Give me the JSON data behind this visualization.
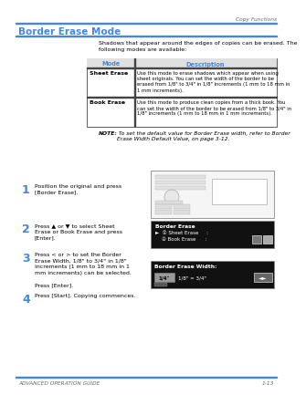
{
  "title": "Border Erase Mode",
  "header_label": "Copy Functions",
  "footer_left": "ADVANCED OPERATION GUIDE",
  "footer_right": "1-13",
  "section_color": "#4488DD",
  "intro_text": "Shadows that appear around the edges of copies can be erased. The\nfollowing modes are available:",
  "table_headers": [
    "Mode",
    "Description"
  ],
  "table_rows": [
    [
      "Sheet Erase",
      "Use this mode to erase shadows which appear when using\nsheet originals. You can set the width of the border to be\nerased from 1/8\" to 3/4\" in 1/8\" increments (1 mm to 18 mm in\n1 mm increments)."
    ],
    [
      "Book Erase",
      "Use this mode to produce clean copies from a thick book. You\ncan set the width of the border to be erased from 1/8\" to 3/4\" in\n1/8\" increments (1 mm to 18 mm in 1 mm increments)."
    ]
  ],
  "note_bold": "NOTE:",
  "note_text": " To set the default value for Border Erase width, refer to Border\nErase Width Default Value, on page 3-12.",
  "steps": [
    {
      "num": "1",
      "text": "Position the original and press\n[Border Erase]."
    },
    {
      "num": "2",
      "text": "Press ▲ or ▼ to select Sheet\nErase or Book Erase and press\n[Enter]."
    },
    {
      "num": "3",
      "text": "Press < or > to set the Border\nErase Width, 1/8\" to 3/4\" in 1/8\"\nincrements (1 mm to 18 mm in 1\nmm increments) can be selected.\n\nPress [Enter]."
    },
    {
      "num": "4",
      "text": "Press [Start]. Copying commences."
    }
  ],
  "bg_color": "#FFFFFF",
  "text_color": "#000000"
}
